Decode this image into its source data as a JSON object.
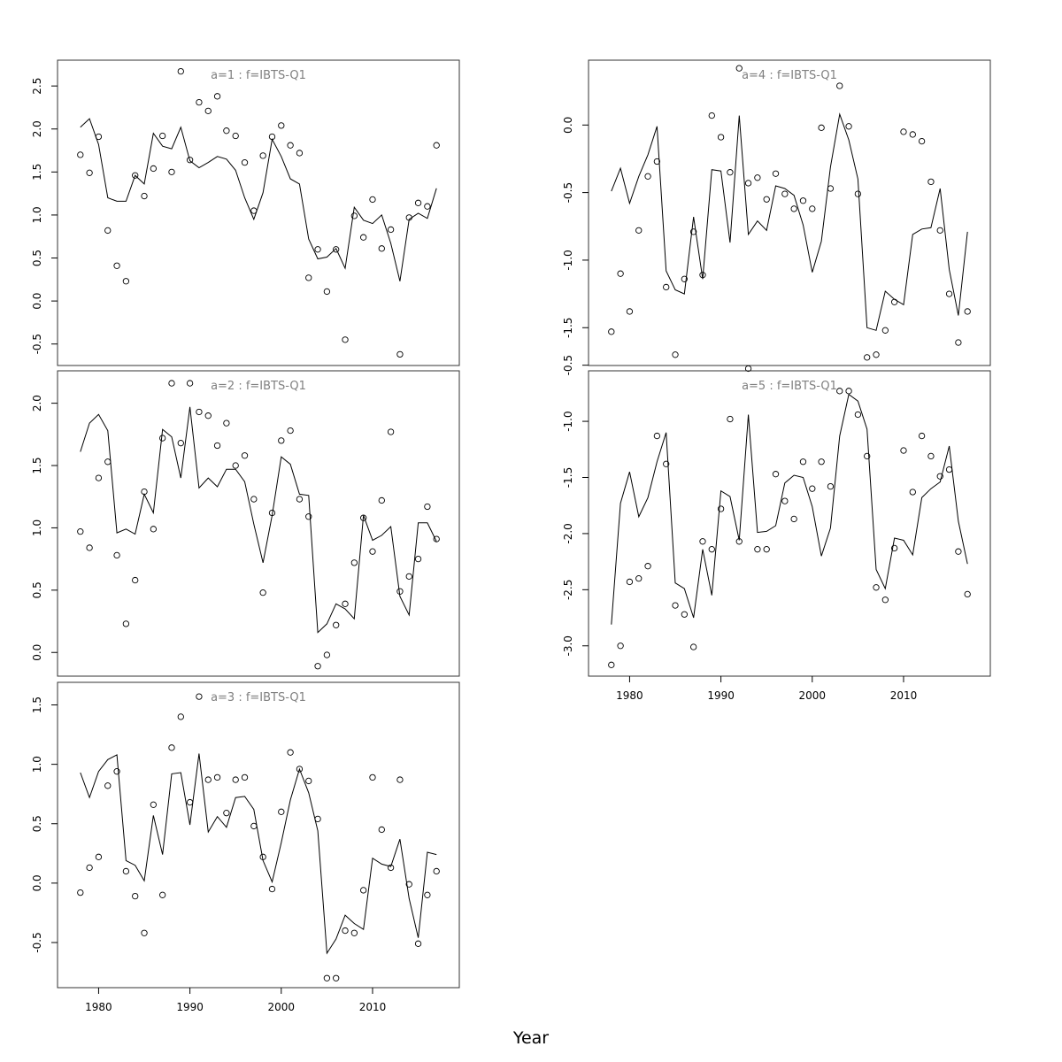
{
  "figure": {
    "xlabel": "Year"
  },
  "chart_data": [
    {
      "type": "line",
      "title": "a=1 : f=IBTS-Q1",
      "x_start": 1978,
      "xlim": [
        1975.5,
        2019.5
      ],
      "ylim": [
        -0.75,
        2.8
      ],
      "y_ticks": [
        -0.5,
        0,
        0.5,
        1,
        1.5,
        2,
        2.5
      ],
      "x_ticks": [],
      "series": [
        {
          "mark": "points",
          "values": [
            1.7,
            1.49,
            1.91,
            0.82,
            0.41,
            0.23,
            1.46,
            1.22,
            1.54,
            1.92,
            1.5,
            2.67,
            1.64,
            2.31,
            2.21,
            2.38,
            1.98,
            1.92,
            1.61,
            1.05,
            1.69,
            1.91,
            2.04,
            1.81,
            1.72,
            0.27,
            0.6,
            0.11,
            0.6,
            -0.45,
            0.99,
            0.74,
            1.18,
            0.61,
            0.83,
            -0.62,
            0.97,
            1.14,
            1.1,
            1.81
          ]
        },
        {
          "mark": "line",
          "values": [
            2.02,
            2.12,
            1.82,
            1.2,
            1.16,
            1.16,
            1.46,
            1.36,
            1.95,
            1.8,
            1.77,
            2.02,
            1.63,
            1.55,
            1.61,
            1.68,
            1.65,
            1.52,
            1.2,
            0.95,
            1.26,
            1.88,
            1.68,
            1.42,
            1.36,
            0.72,
            0.49,
            0.51,
            0.61,
            0.38,
            1.09,
            0.94,
            0.9,
            1.0,
            0.67,
            0.23,
            0.95,
            1.02,
            0.96,
            1.31
          ]
        }
      ]
    },
    {
      "type": "line",
      "title": "a=4 : f=IBTS-Q1",
      "x_start": 1978,
      "xlim": [
        1975.5,
        2019.5
      ],
      "ylim": [
        -1.78,
        0.48
      ],
      "y_ticks": [
        -1.5,
        -1,
        -0.5,
        0
      ],
      "x_ticks": [],
      "series": [
        {
          "mark": "points",
          "values": [
            -1.53,
            -1.1,
            -1.38,
            -0.78,
            -0.38,
            -0.27,
            -1.2,
            -1.7,
            -1.14,
            -0.79,
            -1.11,
            0.07,
            -0.09,
            -0.35,
            0.42,
            -0.43,
            -0.39,
            -0.55,
            -0.36,
            -0.51,
            -0.62,
            -0.56,
            -0.62,
            -0.02,
            -0.47,
            0.29,
            -0.01,
            -0.51,
            -1.72,
            -1.7,
            -1.52,
            -1.31,
            -0.05,
            -0.07,
            -0.12,
            -0.42,
            -0.78,
            -1.25,
            -1.61,
            -1.38
          ]
        },
        {
          "mark": "line",
          "values": [
            -0.49,
            -0.32,
            -0.58,
            -0.38,
            -0.22,
            -0.01,
            -1.08,
            -1.22,
            -1.25,
            -0.68,
            -1.14,
            -0.33,
            -0.34,
            -0.87,
            0.07,
            -0.81,
            -0.71,
            -0.78,
            -0.45,
            -0.47,
            -0.52,
            -0.74,
            -1.09,
            -0.86,
            -0.31,
            0.08,
            -0.11,
            -0.4,
            -1.5,
            -1.52,
            -1.23,
            -1.29,
            -1.33,
            -0.81,
            -0.77,
            -0.76,
            -0.47,
            -1.07,
            -1.41,
            -0.79
          ]
        }
      ]
    },
    {
      "type": "line",
      "title": "a=2 : f=IBTS-Q1",
      "x_start": 1978,
      "xlim": [
        1975.5,
        2019.5
      ],
      "ylim": [
        -0.19,
        2.26
      ],
      "y_ticks": [
        0,
        0.5,
        1,
        1.5,
        2
      ],
      "x_ticks": [],
      "series": [
        {
          "mark": "points",
          "values": [
            0.97,
            0.84,
            1.4,
            1.53,
            0.78,
            0.23,
            0.58,
            1.29,
            0.99,
            1.72,
            2.16,
            1.68,
            2.16,
            1.93,
            1.9,
            1.66,
            1.84,
            1.5,
            1.58,
            1.23,
            0.48,
            1.12,
            1.7,
            1.78,
            1.23,
            1.09,
            -0.11,
            -0.02,
            0.22,
            0.39,
            0.72,
            1.08,
            0.81,
            1.22,
            1.77,
            0.49,
            0.61,
            0.75,
            1.17,
            0.91
          ]
        },
        {
          "mark": "line",
          "values": [
            1.61,
            1.84,
            1.91,
            1.78,
            0.96,
            0.99,
            0.95,
            1.27,
            1.12,
            1.79,
            1.73,
            1.4,
            1.97,
            1.32,
            1.4,
            1.33,
            1.47,
            1.47,
            1.37,
            1.03,
            0.72,
            1.1,
            1.57,
            1.51,
            1.27,
            1.26,
            0.16,
            0.23,
            0.39,
            0.35,
            0.27,
            1.1,
            0.9,
            0.94,
            1.01,
            0.45,
            0.3,
            1.04,
            1.04,
            0.89
          ]
        }
      ]
    },
    {
      "type": "line",
      "title": "a=5 : f=IBTS-Q1",
      "x_start": 1978,
      "xlim": [
        1975.5,
        2019.5
      ],
      "ylim": [
        -3.27,
        -0.55
      ],
      "y_ticks": [
        -3,
        -2.5,
        -2,
        -1.5,
        -1,
        -0.5
      ],
      "x_ticks": [
        1980,
        1990,
        2000,
        2010
      ],
      "series": [
        {
          "mark": "points",
          "values": [
            -3.17,
            -3.0,
            -2.43,
            -2.4,
            -2.29,
            -1.13,
            -1.38,
            -2.64,
            -2.72,
            -3.01,
            -2.07,
            -2.14,
            -1.78,
            -0.98,
            -2.07,
            -0.53,
            -2.14,
            -2.14,
            -1.47,
            -1.71,
            -1.87,
            -1.36,
            -1.6,
            -1.36,
            -1.58,
            -0.73,
            -0.73,
            -0.94,
            -1.31,
            -2.48,
            -2.59,
            -2.13,
            -1.26,
            -1.63,
            -1.13,
            -1.31,
            -1.49,
            -1.43,
            -2.16,
            -2.54
          ]
        },
        {
          "mark": "line",
          "values": [
            -2.81,
            -1.73,
            -1.45,
            -1.85,
            -1.68,
            -1.36,
            -1.1,
            -2.44,
            -2.49,
            -2.75,
            -2.14,
            -2.55,
            -1.62,
            -1.67,
            -2.06,
            -0.94,
            -1.99,
            -1.98,
            -1.93,
            -1.55,
            -1.48,
            -1.5,
            -1.76,
            -2.2,
            -1.95,
            -1.13,
            -0.76,
            -0.82,
            -1.07,
            -2.32,
            -2.49,
            -2.04,
            -2.06,
            -2.19,
            -1.68,
            -1.6,
            -1.54,
            -1.22,
            -1.89,
            -2.27
          ]
        }
      ]
    },
    {
      "type": "line",
      "title": "a=3 : f=IBTS-Q1",
      "x_start": 1978,
      "xlim": [
        1975.5,
        2019.5
      ],
      "ylim": [
        -0.88,
        1.69
      ],
      "y_ticks": [
        -0.5,
        0,
        0.5,
        1,
        1.5
      ],
      "x_ticks": [
        1980,
        1990,
        2000,
        2010
      ],
      "series": [
        {
          "mark": "points",
          "values": [
            -0.08,
            0.13,
            0.22,
            0.82,
            0.94,
            0.1,
            -0.11,
            -0.42,
            0.66,
            -0.1,
            1.14,
            1.4,
            0.68,
            1.57,
            0.87,
            0.89,
            0.59,
            0.87,
            0.89,
            0.48,
            0.22,
            -0.05,
            0.6,
            1.1,
            0.96,
            0.86,
            0.54,
            -0.8,
            -0.8,
            -0.4,
            -0.42,
            -0.06,
            0.89,
            0.45,
            0.13,
            0.87,
            -0.01,
            -0.51,
            -0.1,
            0.1
          ]
        },
        {
          "mark": "line",
          "values": [
            0.93,
            0.72,
            0.94,
            1.04,
            1.08,
            0.19,
            0.15,
            0.02,
            0.57,
            0.24,
            0.92,
            0.93,
            0.49,
            1.09,
            0.43,
            0.56,
            0.47,
            0.72,
            0.73,
            0.62,
            0.19,
            0.01,
            0.34,
            0.7,
            0.96,
            0.76,
            0.44,
            -0.59,
            -0.47,
            -0.27,
            -0.34,
            -0.39,
            0.21,
            0.16,
            0.14,
            0.37,
            -0.13,
            -0.46,
            0.26,
            0.24
          ]
        }
      ]
    }
  ]
}
